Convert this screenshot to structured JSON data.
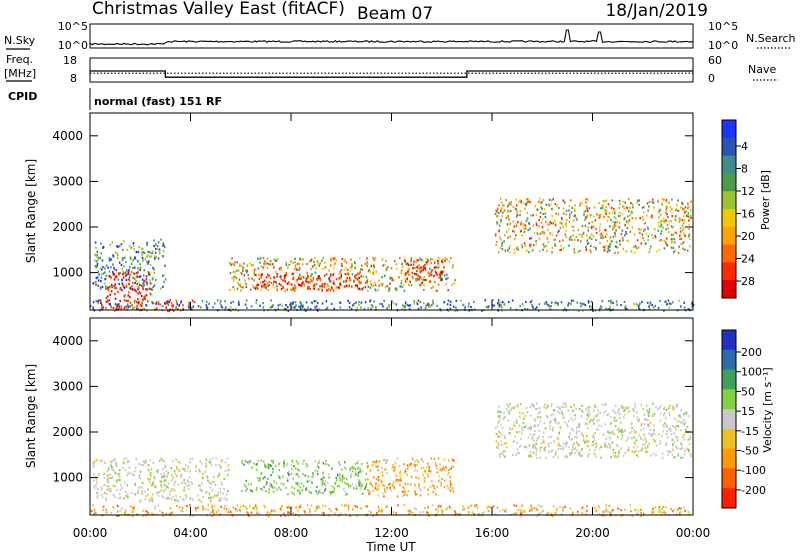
{
  "header": {
    "title": "Christmas Valley East (fitACF)",
    "beam": "Beam 07",
    "date": "18/Jan/2019"
  },
  "noise_panel": {
    "left_label": "N.Sky",
    "right_label": "N.Search",
    "left_ticks": [
      "10^5",
      "10^0"
    ],
    "right_ticks": [
      "10^5",
      "10^0"
    ]
  },
  "freq_panel": {
    "left_label_1": "Freq.",
    "left_label_2": "[MHz]",
    "left_ticks": [
      "18",
      "8"
    ],
    "right_label": "Nave",
    "right_ticks": [
      "60",
      "0"
    ],
    "freq_steps": [
      {
        "from_h": 0,
        "to_h": 3,
        "mhz": 12.6
      },
      {
        "from_h": 3,
        "to_h": 15,
        "mhz": 10.0
      },
      {
        "from_h": 15,
        "to_h": 24,
        "mhz": 12.6
      }
    ],
    "nave_level": 22
  },
  "cpid": {
    "label": "CPID",
    "value": "normal (fast) 151 RF"
  },
  "chart_data": [
    {
      "type": "heatmap",
      "quantity": "Power",
      "ylabel": "Slant Range [km]",
      "xlabel": "Time UT",
      "xlim": [
        0,
        24
      ],
      "ylim": [
        180,
        4500
      ],
      "x_ticks": [
        "00:00",
        "04:00",
        "08:00",
        "12:00",
        "16:00",
        "20:00",
        "00:00"
      ],
      "y_ticks": [
        "1000",
        "2000",
        "3000",
        "4000"
      ],
      "colorbar": {
        "label": "Power [dB]",
        "ticks": [
          "4",
          "8",
          "12",
          "16",
          "20",
          "24",
          "28"
        ],
        "colors": [
          "#1f33ff",
          "#2a52b4",
          "#3f8c8c",
          "#4c9c4c",
          "#9ac232",
          "#f0c800",
          "#ffa300",
          "#ff6a00",
          "#ff2a00",
          "#e00000"
        ]
      },
      "echo_regions": [
        {
          "t0": 0.1,
          "t1": 3.0,
          "r0": 650,
          "r1": 1750,
          "level": "low"
        },
        {
          "t0": 0.6,
          "t1": 2.4,
          "r0": 380,
          "r1": 1050,
          "level": "high"
        },
        {
          "t0": 0.3,
          "t1": 4.2,
          "r0": 180,
          "r1": 420,
          "level": "high"
        },
        {
          "t0": 5.5,
          "t1": 14.5,
          "r0": 620,
          "r1": 1350,
          "level": "mid"
        },
        {
          "t0": 6.5,
          "t1": 11.0,
          "r0": 650,
          "r1": 1000,
          "level": "high"
        },
        {
          "t0": 12.5,
          "t1": 14.0,
          "r0": 800,
          "r1": 1300,
          "level": "high"
        },
        {
          "t0": 16.1,
          "t1": 23.9,
          "r0": 1450,
          "r1": 2650,
          "level": "mid"
        },
        {
          "t0": 0.0,
          "t1": 24.0,
          "r0": 180,
          "r1": 420,
          "level": "low"
        }
      ]
    },
    {
      "type": "heatmap",
      "quantity": "Velocity",
      "ylabel": "Slant Range [km]",
      "xlabel": "Time UT",
      "xlim": [
        0,
        24
      ],
      "ylim": [
        180,
        4500
      ],
      "x_ticks": [
        "00:00",
        "04:00",
        "08:00",
        "12:00",
        "16:00",
        "20:00",
        "00:00"
      ],
      "y_ticks": [
        "1000",
        "2000",
        "3000",
        "4000"
      ],
      "colorbar": {
        "label": "Velocity [m s⁻¹]",
        "ticks": [
          "200",
          "100",
          "50",
          "15",
          "-15",
          "-50",
          "-100",
          "-200"
        ],
        "colors": [
          "#2030c0",
          "#2d6cab",
          "#3fa05a",
          "#80d040",
          "#c8c8c8",
          "#f0c020",
          "#ff9a00",
          "#ff6000",
          "#ff2000"
        ]
      },
      "echo_regions": [
        {
          "t0": 0.1,
          "t1": 5.5,
          "r0": 500,
          "r1": 1450,
          "level": "ground"
        },
        {
          "t0": 6.0,
          "t1": 11.0,
          "r0": 650,
          "r1": 1400,
          "level": "positive"
        },
        {
          "t0": 11.0,
          "t1": 14.5,
          "r0": 600,
          "r1": 1450,
          "level": "negative"
        },
        {
          "t0": 16.1,
          "t1": 23.9,
          "r0": 1450,
          "r1": 2650,
          "level": "ground"
        },
        {
          "t0": 0.0,
          "t1": 24.0,
          "r0": 180,
          "r1": 420,
          "level": "negative"
        }
      ]
    }
  ]
}
